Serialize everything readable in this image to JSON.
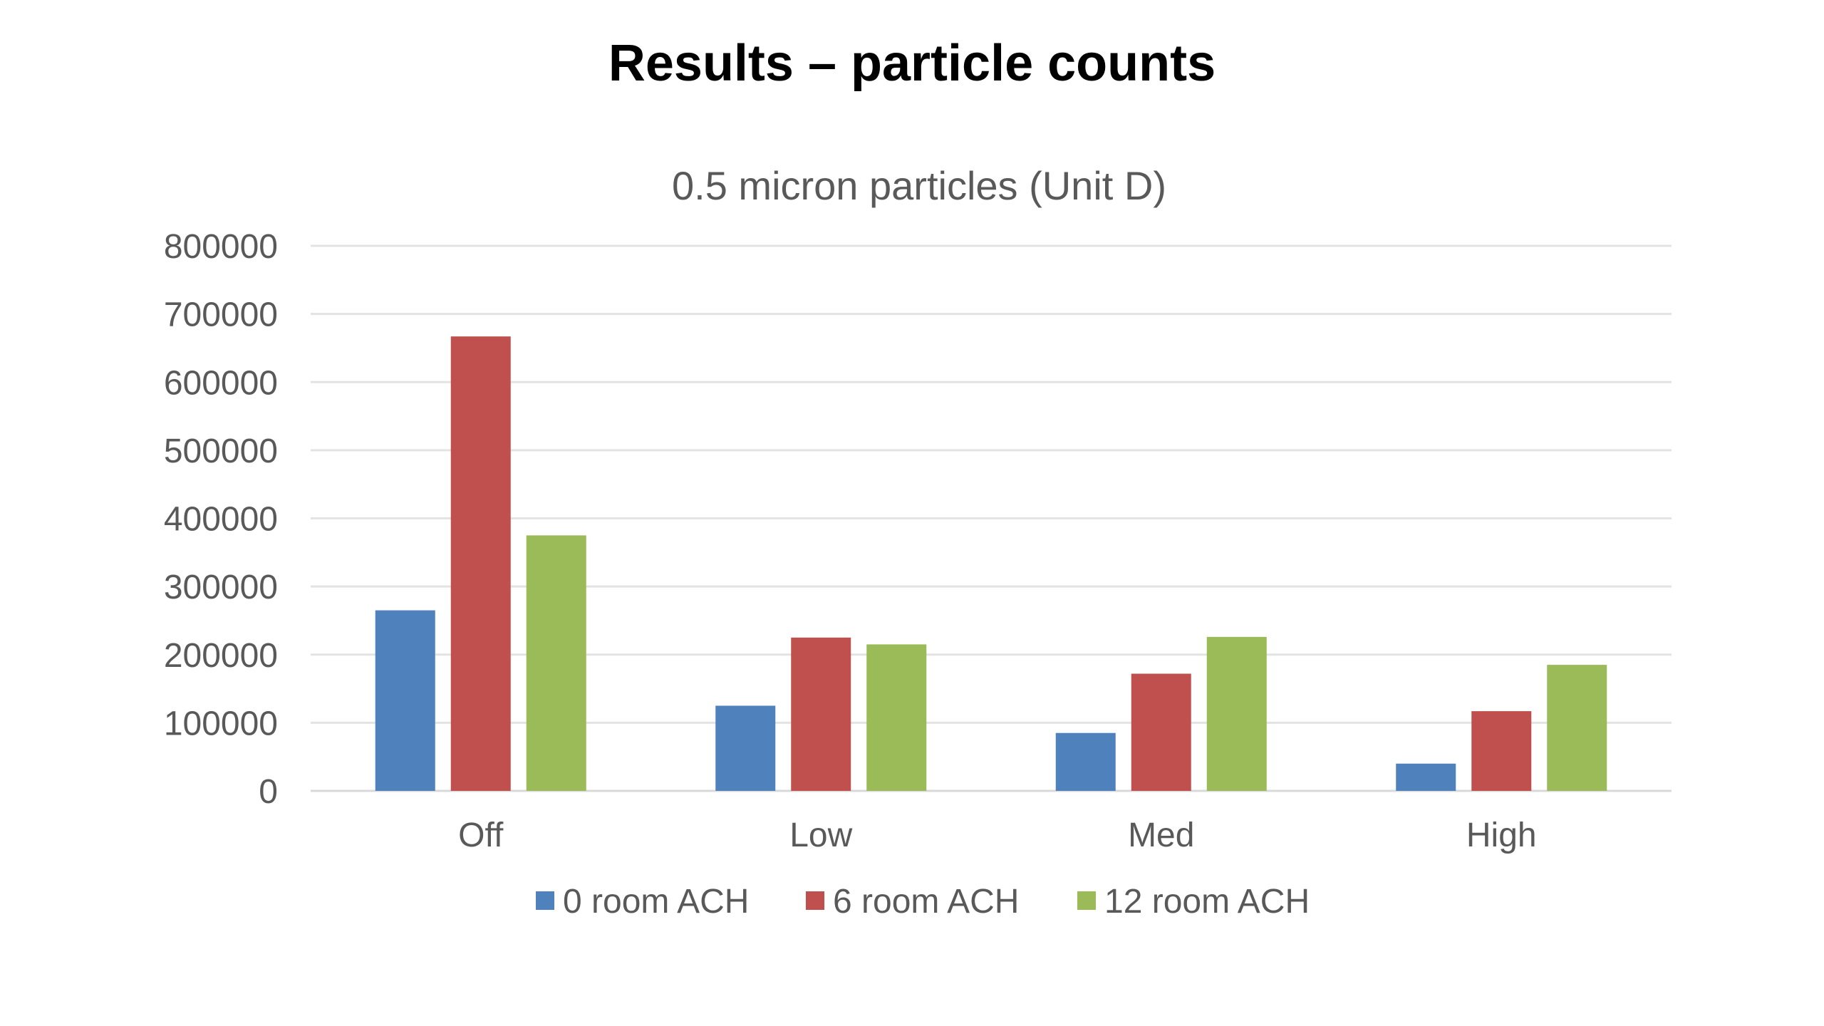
{
  "slide": {
    "title": "Results – particle counts"
  },
  "chart_data": {
    "type": "bar",
    "title": "0.5 micron particles (Unit D)",
    "xlabel": "",
    "ylabel": "",
    "categories": [
      "Off",
      "Low",
      "Med",
      "High"
    ],
    "series": [
      {
        "name": "0 room ACH",
        "color": "#4F81BD",
        "values": [
          265000,
          125000,
          85000,
          40000
        ]
      },
      {
        "name": "6 room ACH",
        "color": "#C0504D",
        "values": [
          667000,
          225000,
          172000,
          117000
        ]
      },
      {
        "name": "12 room ACH",
        "color": "#9BBB59",
        "values": [
          375000,
          215000,
          226000,
          185000
        ]
      }
    ],
    "ylim": [
      0,
      800000
    ],
    "yticks": [
      0,
      100000,
      200000,
      300000,
      400000,
      500000,
      600000,
      700000,
      800000
    ],
    "ytick_labels": [
      "0",
      "100000",
      "200000",
      "300000",
      "400000",
      "500000",
      "600000",
      "700000",
      "800000"
    ],
    "grid": true,
    "legend": "bottom"
  }
}
